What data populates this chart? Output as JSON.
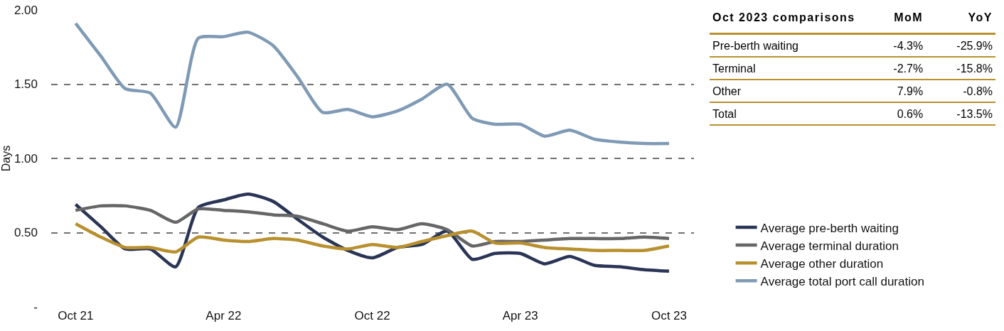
{
  "chart_data": [
    {
      "type": "line",
      "ylabel": "Days",
      "x": [
        "2021-10",
        "2021-11",
        "2021-12",
        "2022-01",
        "2022-02",
        "2022-03",
        "2022-04",
        "2022-05",
        "2022-06",
        "2022-07",
        "2022-08",
        "2022-09",
        "2022-10",
        "2022-11",
        "2022-12",
        "2023-01",
        "2023-02",
        "2023-03",
        "2023-04",
        "2023-05",
        "2023-06",
        "2023-07",
        "2023-08",
        "2023-09",
        "2023-10"
      ],
      "series": [
        {
          "name": "Average pre-berth waiting",
          "color": "#2a3556",
          "values": [
            0.69,
            0.54,
            0.39,
            0.39,
            0.27,
            0.67,
            0.72,
            0.76,
            0.71,
            0.59,
            0.47,
            0.38,
            0.33,
            0.4,
            0.42,
            0.51,
            0.32,
            0.36,
            0.36,
            0.29,
            0.34,
            0.28,
            0.27,
            0.25,
            0.24
          ]
        },
        {
          "name": "Average terminal duration",
          "color": "#666666",
          "values": [
            0.65,
            0.68,
            0.68,
            0.65,
            0.57,
            0.66,
            0.65,
            0.64,
            0.62,
            0.61,
            0.56,
            0.51,
            0.54,
            0.52,
            0.56,
            0.52,
            0.41,
            0.44,
            0.44,
            0.45,
            0.46,
            0.46,
            0.46,
            0.47,
            0.46
          ]
        },
        {
          "name": "Average other duration",
          "color": "#b8902e",
          "values": [
            0.56,
            0.47,
            0.4,
            0.4,
            0.37,
            0.47,
            0.45,
            0.44,
            0.46,
            0.45,
            0.41,
            0.39,
            0.42,
            0.4,
            0.44,
            0.48,
            0.51,
            0.43,
            0.43,
            0.4,
            0.39,
            0.38,
            0.38,
            0.38,
            0.41
          ]
        },
        {
          "name": "Average total port call duration",
          "color": "#7f9ab5",
          "values": [
            1.91,
            1.69,
            1.47,
            1.44,
            1.21,
            1.81,
            1.82,
            1.85,
            1.76,
            1.55,
            1.31,
            1.33,
            1.28,
            1.32,
            1.4,
            1.5,
            1.27,
            1.23,
            1.23,
            1.15,
            1.19,
            1.13,
            1.11,
            1.1,
            1.1
          ]
        }
      ],
      "xlim": [
        "2021-09",
        "2023-11"
      ],
      "xticks": [
        {
          "value": "2021-10",
          "label": "Oct 21"
        },
        {
          "value": "2022-04",
          "label": "Apr 22"
        },
        {
          "value": "2022-10",
          "label": "Oct 22"
        },
        {
          "value": "2023-04",
          "label": "Apr 23"
        },
        {
          "value": "2023-10",
          "label": "Oct 23"
        }
      ],
      "ylim": [
        0,
        2
      ],
      "yticks": [
        {
          "value": 0,
          "label": "-"
        },
        {
          "value": 0.5,
          "label": "0.50"
        },
        {
          "value": 1,
          "label": "1.00"
        },
        {
          "value": 1.5,
          "label": "1.50"
        },
        {
          "value": 2,
          "label": "2.00"
        }
      ],
      "grid": "y",
      "legend": "bottom right",
      "marker": "none",
      "line_style": "solid"
    },
    {
      "type": "other",
      "title": "Oct 2023 comparisons",
      "categories": [
        "MoM",
        "YoY"
      ],
      "y_categories": [
        "Pre-berth waiting",
        "Terminal",
        "Other",
        "Total"
      ],
      "cell_labels": [
        [
          "-4.3%",
          "-25.9%"
        ],
        [
          "-2.7%",
          "-15.8%"
        ],
        [
          "7.9%",
          "-0.8%"
        ],
        [
          "0.6%",
          "-13.5%"
        ]
      ]
    }
  ]
}
